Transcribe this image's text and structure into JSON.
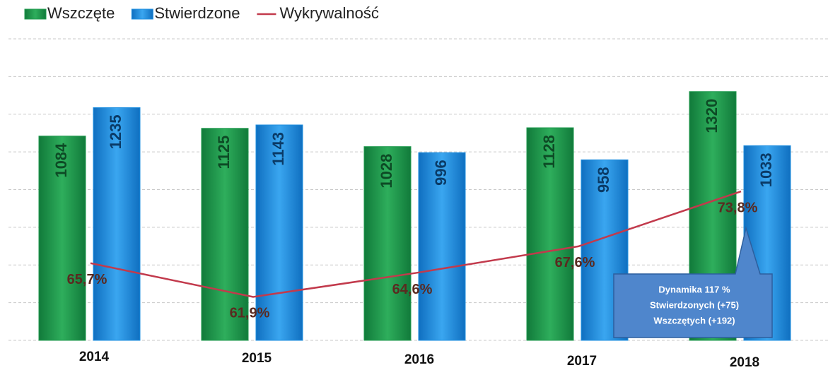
{
  "chart_data": {
    "type": "bar",
    "categories": [
      "2014",
      "2015",
      "2016",
      "2017",
      "2018"
    ],
    "series": [
      {
        "name": "Wszczęte",
        "color": "#1f9a4e",
        "values": [
          1084,
          1125,
          1028,
          1128,
          1320
        ]
      },
      {
        "name": "Stwierdzone",
        "color": "#1e8fe0",
        "values": [
          1235,
          1143,
          996,
          958,
          1033
        ]
      },
      {
        "name": "Wykrywalność",
        "color": "#c23a4c",
        "axis": "y2",
        "values": [
          65.7,
          61.9,
          64.6,
          67.6,
          73.8
        ],
        "value_labels": [
          "65,7%",
          "61,9%",
          "64,6%",
          "67,6%",
          "73,8%"
        ]
      }
    ],
    "ylim": [
      0,
      1600
    ],
    "yticks": [
      0,
      200,
      400,
      600,
      800,
      1000,
      1200,
      1400,
      1600
    ],
    "grid": true,
    "y2lim": [
      57,
      91
    ],
    "legend": "top-left",
    "annotations": [
      "Dynamika 117 %",
      "Stwierdzonych (+75)",
      "Wszczętych (+192)"
    ]
  }
}
